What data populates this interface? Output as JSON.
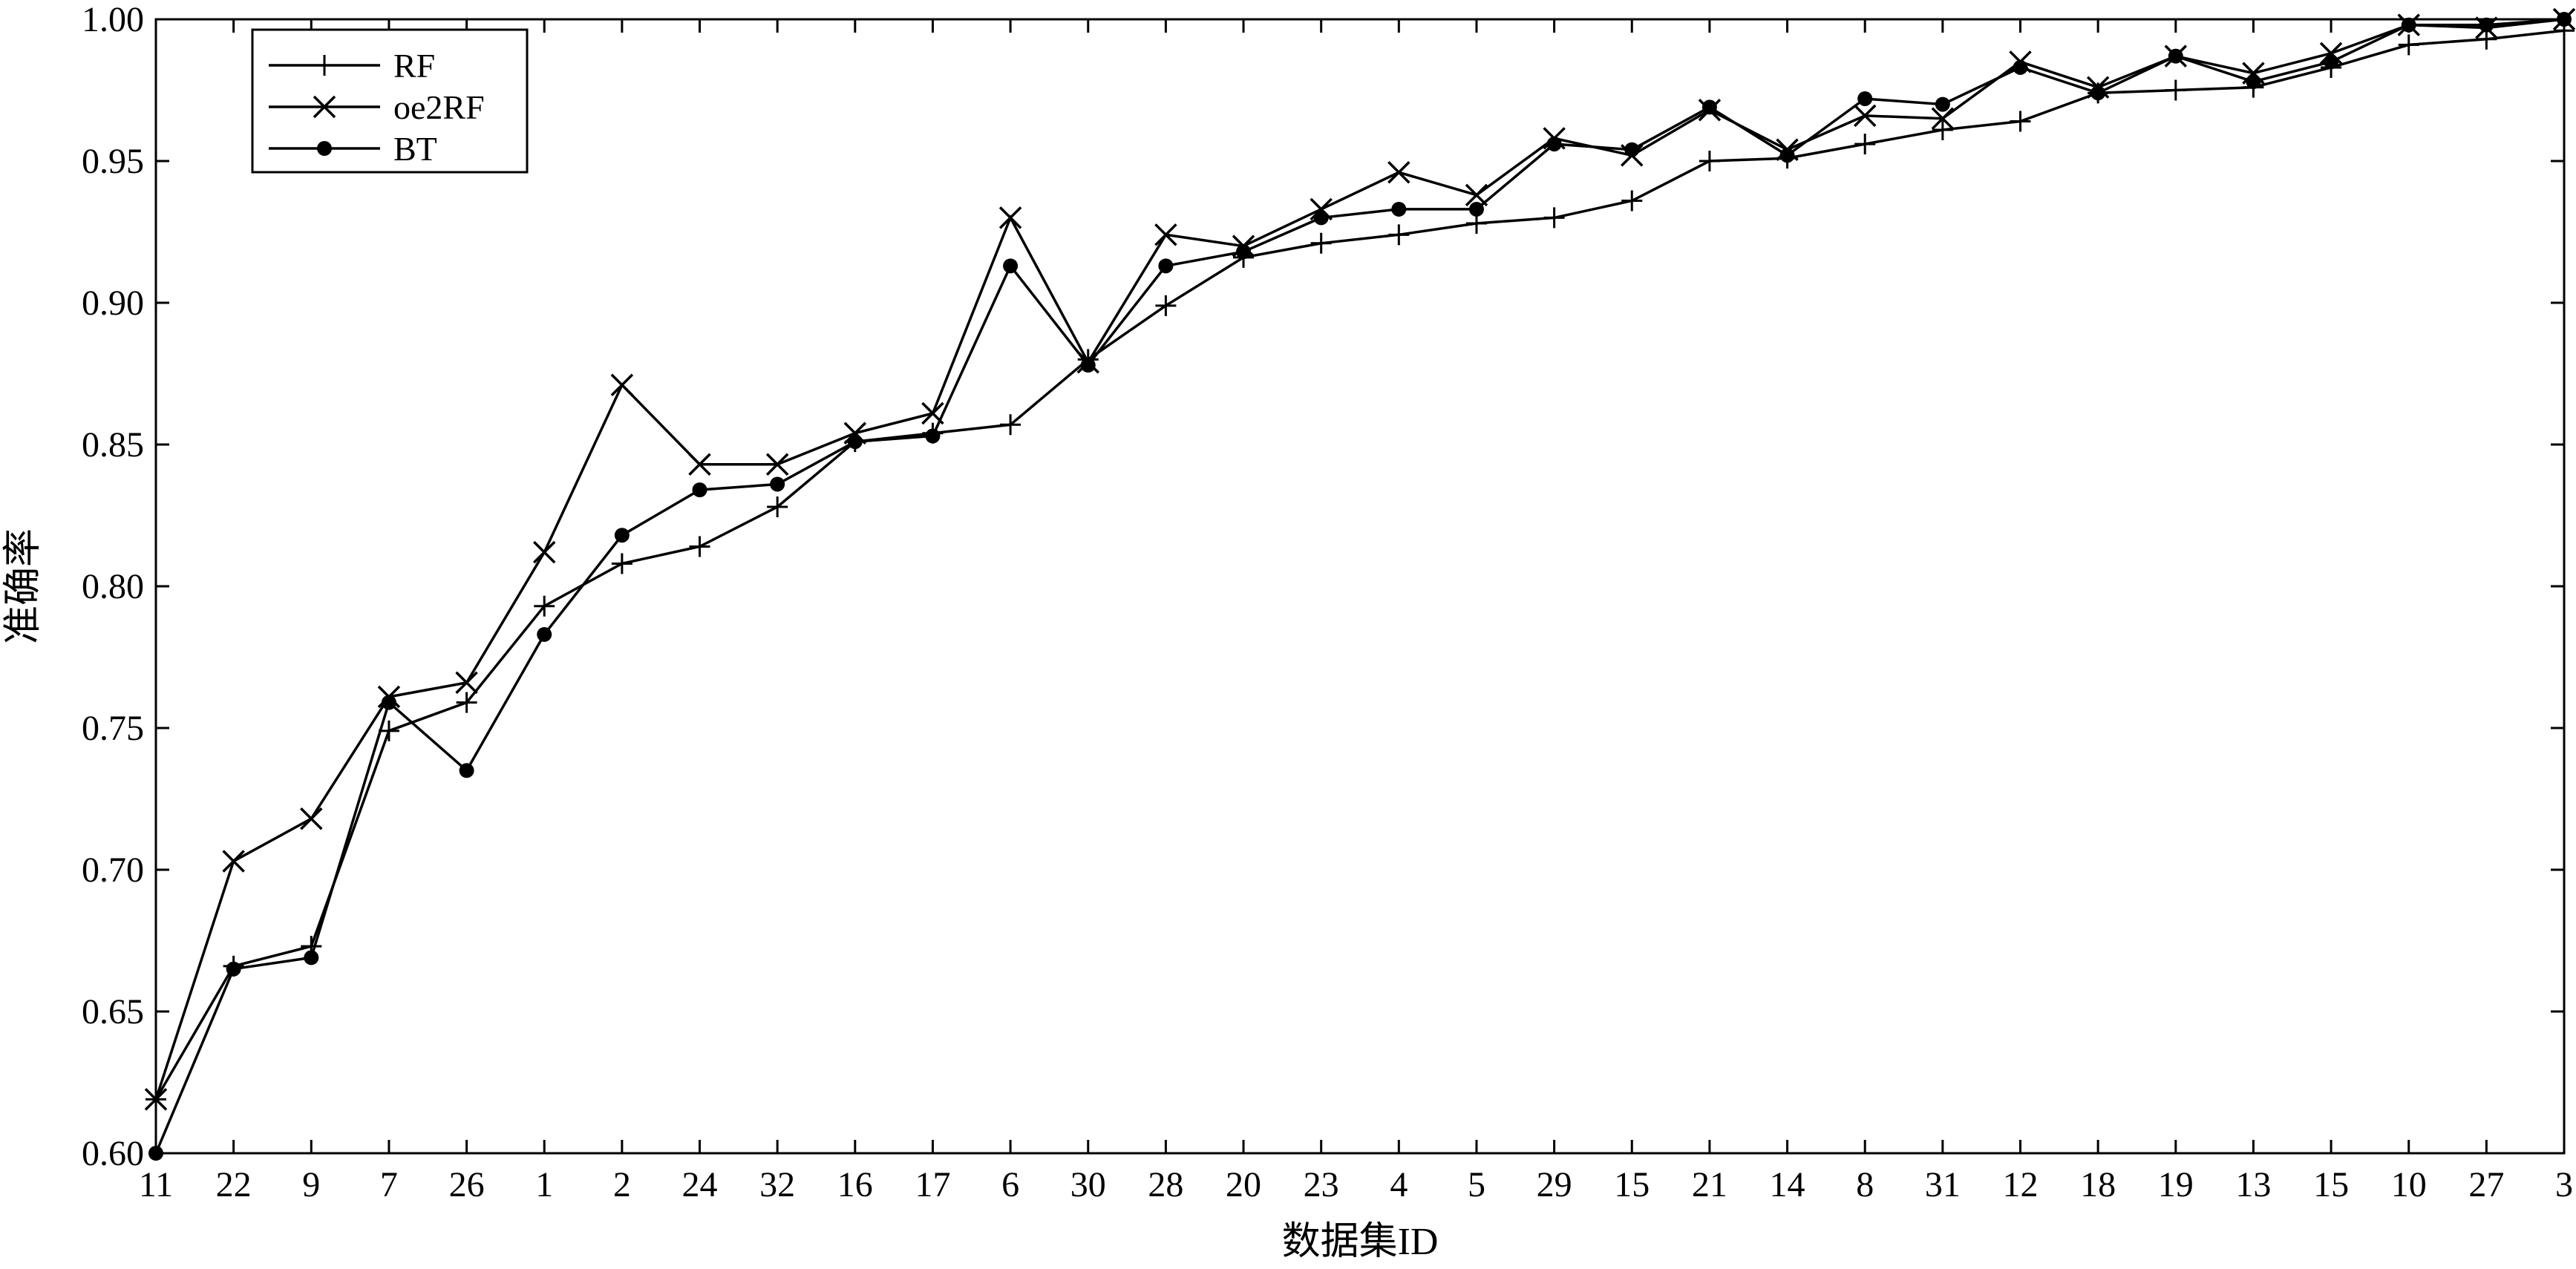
{
  "chart_data": {
    "type": "line",
    "xlabel": "数据集ID",
    "ylabel": "准确率",
    "categories": [
      "11",
      "22",
      "9",
      "7",
      "26",
      "1",
      "2",
      "24",
      "32",
      "16",
      "17",
      "6",
      "30",
      "28",
      "20",
      "23",
      "4",
      "5",
      "29",
      "15",
      "21",
      "14",
      "8",
      "31",
      "12",
      "18",
      "19",
      "13",
      "15",
      "10",
      "27",
      "3"
    ],
    "ylim": [
      0.6,
      1.0
    ],
    "yticks": [
      "0.60",
      "0.65",
      "0.70",
      "0.75",
      "0.80",
      "0.85",
      "0.90",
      "0.95",
      "1.00"
    ],
    "grid": false,
    "legend_position": "top-left",
    "series": [
      {
        "name": "RF",
        "marker": "plus",
        "values": [
          0.619,
          0.666,
          0.673,
          0.749,
          0.759,
          0.793,
          0.808,
          0.814,
          0.828,
          0.851,
          0.854,
          0.857,
          0.88,
          0.899,
          0.916,
          0.921,
          0.924,
          0.928,
          0.93,
          0.936,
          0.95,
          0.951,
          0.956,
          0.961,
          0.964,
          0.974,
          0.975,
          0.976,
          0.983,
          0.991,
          0.993,
          0.996
        ]
      },
      {
        "name": "oe2RF",
        "marker": "cross",
        "values": [
          0.619,
          0.703,
          0.718,
          0.761,
          0.766,
          0.812,
          0.871,
          0.843,
          0.843,
          0.854,
          0.861,
          0.93,
          0.879,
          0.924,
          0.92,
          0.933,
          0.946,
          0.938,
          0.958,
          0.952,
          0.968,
          0.954,
          0.966,
          0.965,
          0.985,
          0.976,
          0.987,
          0.981,
          0.988,
          0.998,
          0.997,
          1.0
        ]
      },
      {
        "name": "BT",
        "marker": "dot",
        "values": [
          0.6,
          0.665,
          0.669,
          0.759,
          0.735,
          0.783,
          0.818,
          0.834,
          0.836,
          0.851,
          0.853,
          0.913,
          0.878,
          0.913,
          0.918,
          0.93,
          0.933,
          0.933,
          0.956,
          0.954,
          0.969,
          0.952,
          0.972,
          0.97,
          0.983,
          0.974,
          0.987,
          0.978,
          0.985,
          0.998,
          0.998,
          1.0
        ]
      }
    ]
  }
}
